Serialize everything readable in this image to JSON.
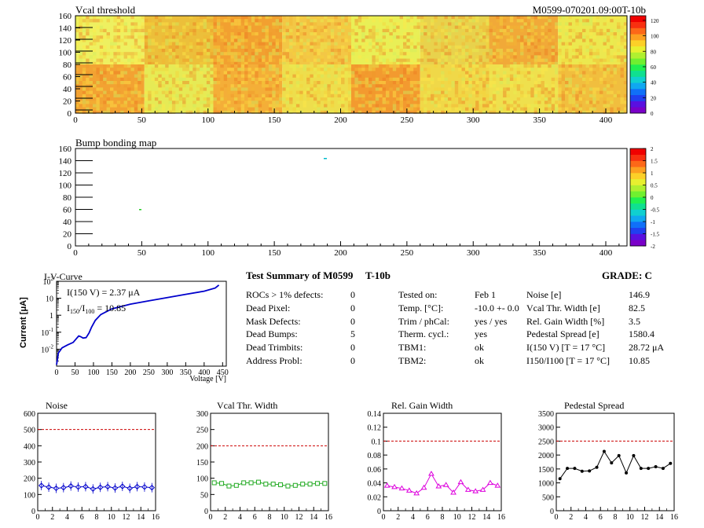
{
  "header": {
    "module_id": "M0599-070201.09:00T-10b"
  },
  "vcal_map": {
    "title": "Vcal threshold",
    "x_ticks": [
      "0",
      "50",
      "100",
      "150",
      "200",
      "250",
      "300",
      "350",
      "400"
    ],
    "y_ticks": [
      "0",
      "20",
      "40",
      "60",
      "80",
      "100",
      "120",
      "140",
      "160"
    ],
    "z_ticks": [
      "0",
      "20",
      "40",
      "60",
      "80",
      "100",
      "120"
    ]
  },
  "bump_map": {
    "title": "Bump bonding map",
    "x_ticks": [
      "0",
      "50",
      "100",
      "150",
      "200",
      "250",
      "300",
      "350",
      "400"
    ],
    "y_ticks": [
      "0",
      "20",
      "40",
      "60",
      "80",
      "100",
      "120",
      "140",
      "160"
    ],
    "z_ticks": [
      "-2",
      "-1.5",
      "-1",
      "-0.5",
      "0",
      "0.5",
      "1",
      "1.5",
      "2"
    ]
  },
  "iv_curve": {
    "title": "I-V-Curve",
    "xlabel": "Voltage [V]",
    "ylabel": "Current [μA]",
    "x_ticks": [
      "0",
      "50",
      "100",
      "150",
      "200",
      "250",
      "300",
      "350",
      "400",
      "450"
    ],
    "annotation1": "I(150 V) = 2.37 μA",
    "annotation2_main": "I",
    "annotation2_sub1": "150",
    "annotation2_mid": "/I",
    "annotation2_sub2": "100",
    "annotation2_val": " = 10.85"
  },
  "summary": {
    "title": "Test Summary of M0599",
    "tag": "T-10b",
    "grade_label": "GRADE:  C",
    "left_rows": [
      {
        "label": "ROCs > 1% defects:",
        "value": "0"
      },
      {
        "label": "Dead Pixel:",
        "value": "0"
      },
      {
        "label": "Mask Defects:",
        "value": "0"
      },
      {
        "label": "Dead Bumps:",
        "value": "5"
      },
      {
        "label": "Dead Trimbits:",
        "value": "0"
      },
      {
        "label": "Address Probl:",
        "value": "0"
      }
    ],
    "mid_rows": [
      {
        "label": "Tested on:",
        "value": "Feb 1"
      },
      {
        "label": "Temp. [°C]:",
        "value": "-10.0 +- 0.0"
      },
      {
        "label": "Trim / phCal:",
        "value": "yes / yes"
      },
      {
        "label": "Therm. cycl.:",
        "value": "yes"
      },
      {
        "label": "TBM1:",
        "value": "ok"
      },
      {
        "label": "TBM2:",
        "value": "ok"
      }
    ],
    "right_rows": [
      {
        "label": "Noise [e]",
        "value": "146.9"
      },
      {
        "label": "Vcal Thr. Width [e]",
        "value": "82.5"
      },
      {
        "label": "Rel. Gain Width [%]",
        "value": "3.5"
      },
      {
        "label": "Pedestal Spread [e]",
        "value": "1580.4"
      },
      {
        "label": "I(150 V) [T = 17 °C]",
        "value": "28.72 μA"
      },
      {
        "label": "I150/I100  [T = 17 °C]",
        "value": "10.85"
      }
    ]
  },
  "chart_data": [
    {
      "type": "line",
      "title": "Noise",
      "x": [
        0,
        1,
        2,
        3,
        4,
        5,
        6,
        7,
        8,
        9,
        10,
        11,
        12,
        13,
        14,
        15
      ],
      "values": [
        155,
        145,
        138,
        142,
        152,
        146,
        148,
        134,
        144,
        148,
        140,
        150,
        138,
        148,
        146,
        142
      ],
      "ylim": [
        0,
        600
      ],
      "y_ticks": [
        "0",
        "100",
        "200",
        "300",
        "400",
        "500",
        "600"
      ],
      "x_ticks": [
        "0",
        "2",
        "4",
        "6",
        "8",
        "10",
        "12",
        "14",
        "16"
      ],
      "threshold": 500,
      "color": "#0000cc",
      "marker": "diamond"
    },
    {
      "type": "line",
      "title": "Vcal Thr. Width",
      "x": [
        0,
        1,
        2,
        3,
        4,
        5,
        6,
        7,
        8,
        9,
        10,
        11,
        12,
        13,
        14,
        15
      ],
      "values": [
        86,
        84,
        76,
        78,
        86,
        86,
        88,
        82,
        82,
        80,
        76,
        78,
        82,
        82,
        84,
        84
      ],
      "ylim": [
        0,
        300
      ],
      "y_ticks": [
        "0",
        "50",
        "100",
        "150",
        "200",
        "250",
        "300"
      ],
      "x_ticks": [
        "0",
        "2",
        "4",
        "6",
        "8",
        "10",
        "12",
        "14",
        "16"
      ],
      "threshold": 200,
      "color": "#22aa22",
      "marker": "square"
    },
    {
      "type": "line",
      "title": "Rel. Gain Width",
      "x": [
        0,
        1,
        2,
        3,
        4,
        5,
        6,
        7,
        8,
        9,
        10,
        11,
        12,
        13,
        14,
        15
      ],
      "values": [
        0.036,
        0.034,
        0.032,
        0.029,
        0.025,
        0.033,
        0.053,
        0.035,
        0.037,
        0.026,
        0.041,
        0.03,
        0.028,
        0.03,
        0.04,
        0.036
      ],
      "ylim": [
        0,
        0.14
      ],
      "y_ticks": [
        "0",
        "0.02",
        "0.04",
        "0.06",
        "0.08",
        "0.1",
        "0.12",
        "0.14"
      ],
      "x_ticks": [
        "0",
        "2",
        "4",
        "6",
        "8",
        "10",
        "12",
        "14",
        "16"
      ],
      "threshold": 0.1,
      "color": "#dd00dd",
      "marker": "triangle"
    },
    {
      "type": "line",
      "title": "Pedestal Spread",
      "x": [
        0,
        1,
        2,
        3,
        4,
        5,
        6,
        7,
        8,
        9,
        10,
        11,
        12,
        13,
        14,
        15
      ],
      "values": [
        1150,
        1520,
        1520,
        1420,
        1430,
        1560,
        2130,
        1720,
        1980,
        1360,
        1980,
        1520,
        1520,
        1580,
        1520,
        1700
      ],
      "ylim": [
        0,
        3500
      ],
      "y_ticks": [
        "0",
        "500",
        "1000",
        "1500",
        "2000",
        "2500",
        "3000",
        "3500"
      ],
      "x_ticks": [
        "0",
        "2",
        "4",
        "6",
        "8",
        "10",
        "12",
        "14",
        "16"
      ],
      "threshold": 2500,
      "color": "#000000",
      "marker": "circle"
    }
  ]
}
